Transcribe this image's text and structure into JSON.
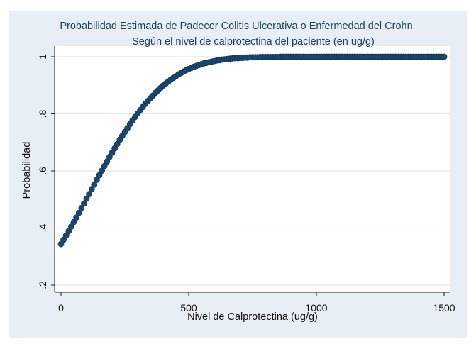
{
  "chart_data": {
    "type": "scatter",
    "title": "Probabilidad Estimada de Padecer Colitis Ulcerativa o Enfermedad del Crohn",
    "subtitle": "Según el nivel de calprotectina del paciente (en ug/g)",
    "xlabel": "Nivel de Calprotectina (ug/g)",
    "ylabel": "Probabilidad",
    "xlim": [
      0,
      1500
    ],
    "ylim": [
      0.2,
      1.0
    ],
    "x_ticks": [
      0,
      500,
      1000,
      1500
    ],
    "x_tick_labels": [
      "0",
      "500",
      "1000",
      "1500"
    ],
    "y_ticks": [
      0.2,
      0.4,
      0.6,
      0.8,
      1.0
    ],
    "y_tick_labels": [
      ".2",
      ".4",
      ".6",
      ".8",
      "1"
    ],
    "grid": "horizontal",
    "legend": "none",
    "series": [
      {
        "x_start": 0,
        "x_end": 1500,
        "x_step": 10,
        "y": [
          0.344,
          0.359,
          0.374,
          0.389,
          0.405,
          0.421,
          0.437,
          0.453,
          0.47,
          0.486,
          0.503,
          0.519,
          0.536,
          0.552,
          0.569,
          0.585,
          0.601,
          0.617,
          0.633,
          0.649,
          0.664,
          0.679,
          0.694,
          0.709,
          0.723,
          0.737,
          0.75,
          0.764,
          0.777,
          0.789,
          0.801,
          0.813,
          0.824,
          0.835,
          0.845,
          0.855,
          0.864,
          0.874,
          0.882,
          0.891,
          0.899,
          0.906,
          0.913,
          0.92,
          0.926,
          0.932,
          0.938,
          0.943,
          0.948,
          0.953,
          0.957,
          0.961,
          0.965,
          0.968,
          0.971,
          0.974,
          0.977,
          0.979,
          0.981,
          0.983,
          0.985,
          0.987,
          0.988,
          0.99,
          0.991,
          0.992,
          0.993,
          0.994,
          0.995,
          0.995,
          0.996,
          0.996,
          0.997,
          0.997,
          0.998,
          0.998,
          0.998,
          0.998,
          0.999,
          0.999,
          0.999,
          0.999,
          0.999,
          0.999,
          0.999,
          0.999,
          1.0,
          1.0,
          1.0,
          1.0,
          1.0,
          1.0,
          1.0,
          1.0,
          1.0,
          1.0,
          1.0,
          1.0,
          1.0,
          1.0,
          1.0,
          1.0,
          1.0,
          1.0,
          1.0,
          1.0,
          1.0,
          1.0,
          1.0,
          1.0,
          1.0,
          1.0,
          1.0,
          1.0,
          1.0,
          1.0,
          1.0,
          1.0,
          1.0,
          1.0,
          1.0,
          1.0,
          1.0,
          1.0,
          1.0,
          1.0,
          1.0,
          1.0,
          1.0,
          1.0,
          1.0,
          1.0,
          1.0,
          1.0,
          1.0,
          1.0,
          1.0,
          1.0,
          1.0,
          1.0,
          1.0,
          1.0,
          1.0,
          1.0,
          1.0,
          1.0,
          1.0,
          1.0,
          1.0,
          1.0,
          1.0
        ]
      }
    ]
  },
  "colors": {
    "outer_background": "#e7eef5",
    "plot_background": "#ffffff",
    "marker": "#1a476f",
    "gridline": "#dde8ee",
    "title": "#1d3d57",
    "axis": "#222222"
  }
}
